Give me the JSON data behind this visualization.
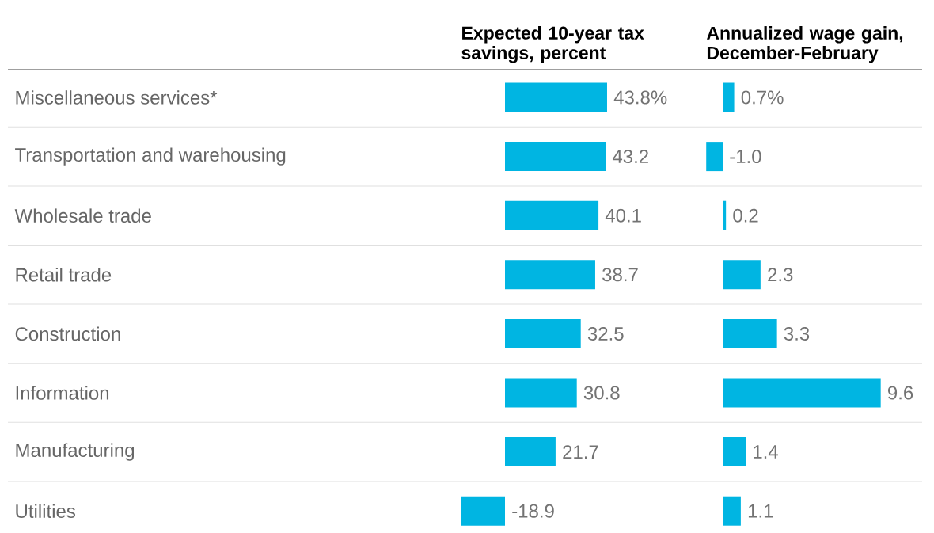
{
  "chart_data": [
    {
      "type": "bar",
      "orientation": "horizontal",
      "title": "Expected 10-year tax savings, percent",
      "categories": [
        "Miscellaneous services*",
        "Transportation and warehousing",
        "Wholesale trade",
        "Retail trade",
        "Construction",
        "Information",
        "Manufacturing",
        "Utilities"
      ],
      "values": [
        43.8,
        43.2,
        40.1,
        38.7,
        32.5,
        30.8,
        21.7,
        -18.9
      ],
      "value_labels": [
        "43.8%",
        "43.2",
        "40.1",
        "38.7",
        "32.5",
        "30.8",
        "21.7",
        "-18.9"
      ],
      "color": "#00b5e2",
      "grid": "y",
      "tick_labels": "y"
    },
    {
      "type": "bar",
      "orientation": "horizontal",
      "title": "Annualized wage gain, December-February",
      "categories": [
        null,
        null,
        null,
        null,
        null,
        null,
        null,
        null
      ],
      "values": [
        0.7,
        -1.0,
        0.2,
        2.3,
        3.3,
        9.6,
        1.4,
        1.1
      ],
      "value_labels": [
        "0.7%",
        "-1.0",
        "0.2",
        "2.3",
        "3.3",
        "9.6",
        "1.4",
        "1.1"
      ],
      "color": "#00b5e2",
      "grid": "y",
      "tick_labels": false
    }
  ]
}
